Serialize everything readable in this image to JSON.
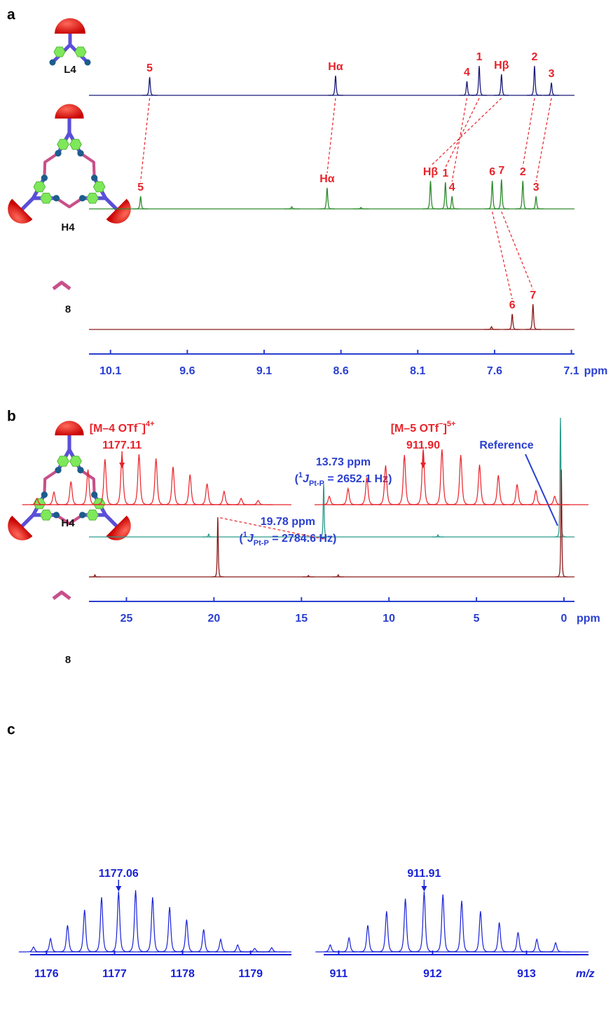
{
  "chart_data": [
    {
      "type": "nmr",
      "letter": "a",
      "x_unit": "ppm",
      "xlim": [
        10.24,
        7.08
      ],
      "xticks": [
        10.1,
        9.6,
        9.1,
        8.6,
        8.1,
        7.6,
        7.1
      ],
      "series": [
        {
          "name": "L4",
          "color": "#1b1b7a",
          "x": [
            9.845,
            8.635,
            7.78,
            7.7,
            7.555,
            7.34,
            7.23
          ],
          "values": [
            26,
            28,
            20,
            42,
            30,
            42,
            18
          ],
          "peak_labels": [
            "5",
            "Hα",
            "4",
            "1",
            "Hβ",
            "2",
            "3"
          ]
        },
        {
          "name": "H4",
          "color": "#2e8b2e",
          "x": [
            9.904,
            8.92,
            8.69,
            8.47,
            8.017,
            7.92,
            7.877,
            7.615,
            7.555,
            7.416,
            7.33
          ],
          "values": [
            18,
            3,
            30,
            2,
            40,
            38,
            18,
            40,
            42,
            40,
            18
          ],
          "peak_labels": [
            "5",
            null,
            "Hα",
            null,
            "Hβ",
            "1",
            "4",
            "6",
            "7",
            "2",
            "3"
          ]
        },
        {
          "name": "8",
          "color": "#8b1a1a",
          "x": [
            7.62,
            7.485,
            7.35
          ],
          "values": [
            4,
            22,
            36
          ],
          "peak_labels": [
            null,
            "6",
            "7"
          ]
        }
      ]
    },
    {
      "type": "nmr",
      "letter": "b",
      "x_unit": "ppm",
      "xlim": [
        27.14,
        -0.6
      ],
      "xticks": [
        25,
        20,
        15,
        10,
        5,
        0
      ],
      "series": [
        {
          "name": "H4",
          "color": "#2a9a8c",
          "x": [
            20.3,
            13.73,
            7.2,
            0.2
          ],
          "values": [
            4,
            76,
            3,
            170
          ],
          "peak_labels": [
            null,
            null,
            null,
            "Reference"
          ],
          "note": {
            "x": 13.73,
            "shift": "13.73 ppm",
            "open": "(",
            "sup": "1",
            "j": "J",
            "sub": "Pt-P",
            "rest": " = 2652.1 Hz)"
          }
        },
        {
          "name": "8",
          "color": "#8b1a1a",
          "x": [
            26.8,
            19.78,
            14.6,
            12.9,
            0.15
          ],
          "values": [
            3,
            85,
            2,
            3,
            153
          ],
          "note": {
            "x": 19.78,
            "shift": "19.78 ppm",
            "open": "(",
            "sup": "1",
            "j": "J",
            "sub": "Pt-P",
            "rest": " = 2784.6 Hz)"
          }
        }
      ]
    },
    {
      "type": "mass",
      "letter": "c",
      "x_unit": "m/z",
      "panels": [
        {
          "xlim": [
            1175.76,
            1179.6
          ],
          "xticks": [
            1176,
            1177,
            1178,
            1179
          ],
          "series": [
            {
              "color": "#e8232a",
              "x": [
                1175.86,
                1176.11,
                1176.36,
                1176.61,
                1176.86,
                1177.11,
                1177.36,
                1177.61,
                1177.86,
                1178.11,
                1178.36,
                1178.61,
                1178.86,
                1179.11
              ],
              "values": [
                9,
                18,
                33,
                50,
                65,
                72,
                72,
                66,
                54,
                43,
                30,
                19,
                9,
                6
              ],
              "annotation": {
                "ion": "[M–4 OTf",
                "ion_sup": "−",
                "ion_close": "]",
                "charge": "4+",
                "value": 1177.11,
                "label": "1177.11"
              }
            },
            {
              "color": "#1a22d6",
              "x": [
                1175.81,
                1176.06,
                1176.31,
                1176.56,
                1176.81,
                1177.06,
                1177.31,
                1177.56,
                1177.81,
                1178.06,
                1178.31,
                1178.56,
                1178.81,
                1179.06,
                1179.31
              ],
              "values": [
                7,
                19,
                38,
                60,
                78,
                86,
                88,
                78,
                64,
                46,
                32,
                18,
                10,
                5,
                6
              ],
              "annotation": {
                "value": 1177.06,
                "label": "1177.06"
              }
            }
          ]
        },
        {
          "xlim": [
            910.84,
            913.66
          ],
          "xticks": [
            911,
            912,
            913
          ],
          "series": [
            {
              "color": "#e8232a",
              "x": [
                910.9,
                911.1,
                911.3,
                911.5,
                911.7,
                911.9,
                912.1,
                912.3,
                912.5,
                912.7,
                912.9,
                913.1,
                913.3
              ],
              "values": [
                12,
                23,
                39,
                56,
                71,
                79,
                79,
                71,
                57,
                42,
                29,
                20,
                12
              ],
              "annotation": {
                "ion": "[M–5 OTf",
                "ion_sup": "−",
                "ion_close": "]",
                "charge": "5+",
                "value": 911.9,
                "label": "911.90"
              }
            },
            {
              "color": "#1a22d6",
              "x": [
                910.91,
                911.11,
                911.31,
                911.51,
                911.71,
                911.91,
                912.11,
                912.31,
                912.51,
                912.71,
                912.91,
                913.11,
                913.31
              ],
              "values": [
                10,
                20,
                38,
                58,
                76,
                86,
                82,
                73,
                58,
                42,
                28,
                18,
                13
              ],
              "annotation": {
                "value": 911.91,
                "label": "911.91"
              }
            }
          ]
        }
      ]
    }
  ]
}
